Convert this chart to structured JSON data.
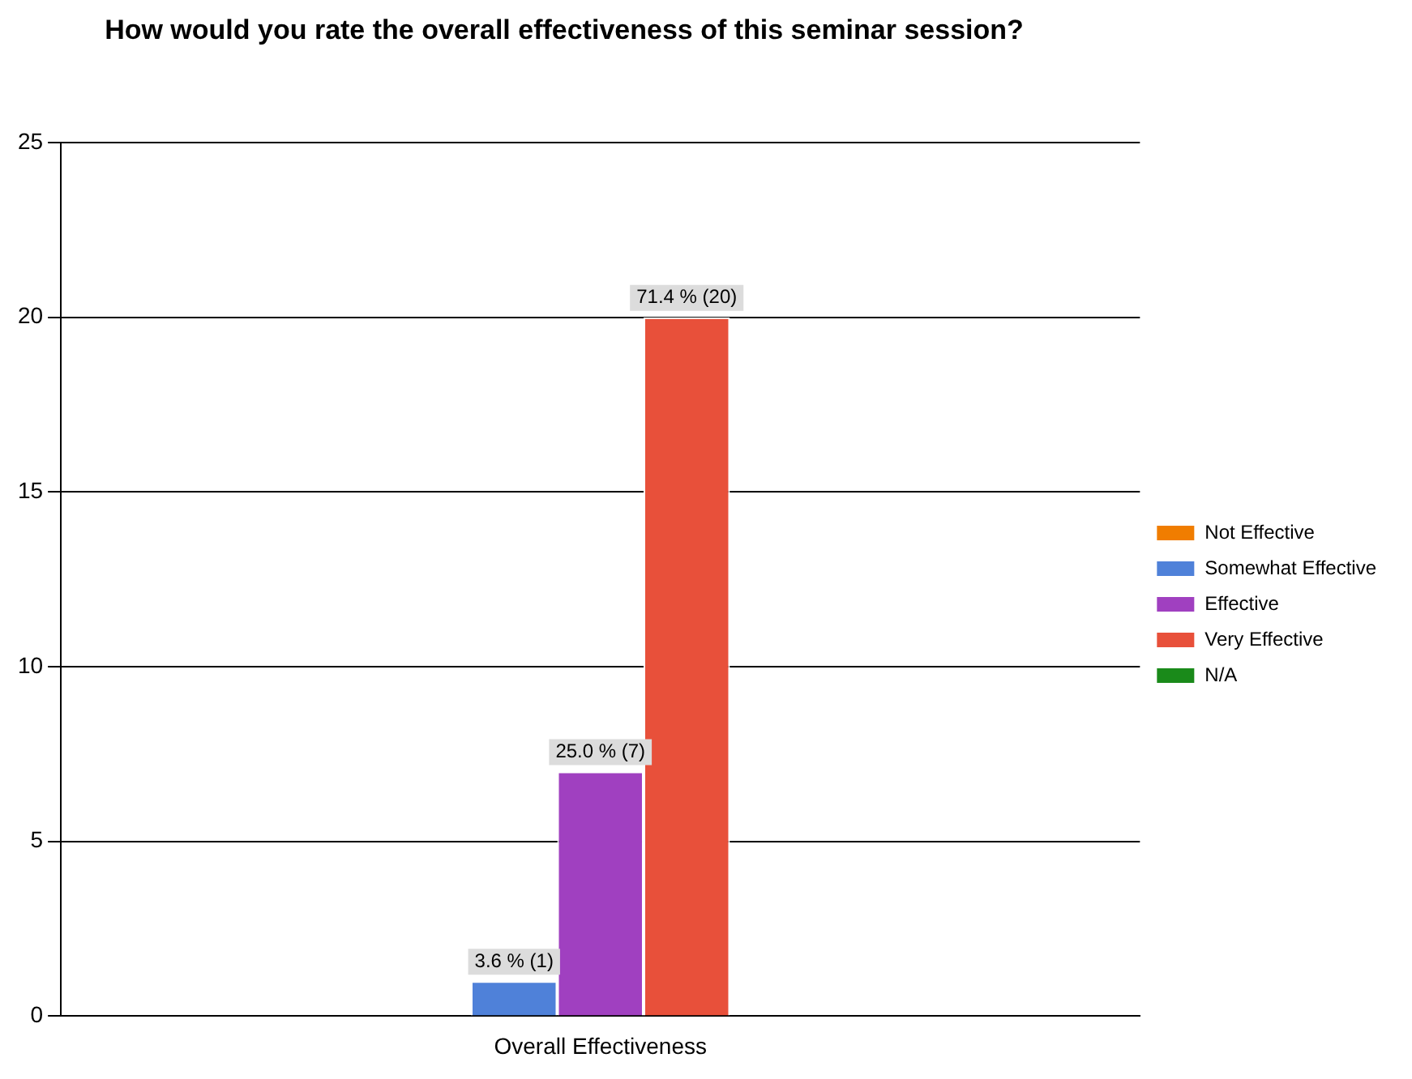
{
  "chart_data": {
    "type": "bar",
    "title": "How would you rate the overall effectiveness of this seminar session?",
    "categories": [
      "Overall Effectiveness"
    ],
    "series": [
      {
        "name": "Not Effective",
        "color": "#f07d00",
        "values": [
          0
        ],
        "value_labels": [
          null
        ]
      },
      {
        "name": "Somewhat Effective",
        "color": "#4f81d9",
        "values": [
          1
        ],
        "value_labels": [
          "3.6 % (1)"
        ]
      },
      {
        "name": "Effective",
        "color": "#a040c0",
        "values": [
          7
        ],
        "value_labels": [
          "25.0 % (7)"
        ]
      },
      {
        "name": "Very Effective",
        "color": "#e8503a",
        "values": [
          20
        ],
        "value_labels": [
          "71.4 % (20)"
        ]
      },
      {
        "name": "N/A",
        "color": "#1a8a1a",
        "values": [
          0
        ],
        "value_labels": [
          null
        ]
      }
    ],
    "ylim": [
      0,
      25
    ],
    "yticks": [
      0,
      5,
      10,
      15,
      20,
      25
    ],
    "grid": "y",
    "legend": "right"
  }
}
